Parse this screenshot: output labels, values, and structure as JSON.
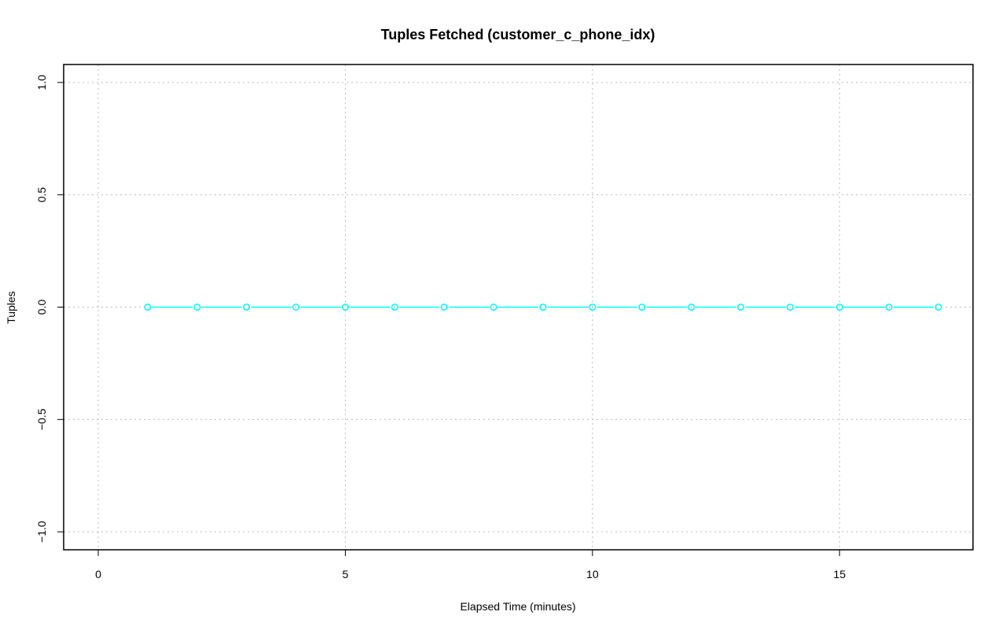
{
  "chart_data": {
    "type": "line",
    "title": "Tuples Fetched (customer_c_phone_idx)",
    "xlabel": "Elapsed Time (minutes)",
    "ylabel": "Tuples",
    "xlim": [
      -0.7,
      17.7
    ],
    "ylim": [
      -1.08,
      1.08
    ],
    "xticks": [
      0,
      5,
      10,
      15
    ],
    "xtick_labels": [
      "0",
      "5",
      "10",
      "15"
    ],
    "yticks": [
      -1.0,
      -0.5,
      0.0,
      0.5,
      1.0
    ],
    "ytick_labels": [
      "−1.0",
      "−0.5",
      "0.0",
      "0.5",
      "1.0"
    ],
    "grid": true,
    "series": [
      {
        "color": "#00ffff",
        "marker": "open-circle",
        "x": [
          1,
          2,
          3,
          4,
          5,
          6,
          7,
          8,
          9,
          10,
          11,
          12,
          13,
          14,
          15,
          16,
          17
        ],
        "y": [
          0,
          0,
          0,
          0,
          0,
          0,
          0,
          0,
          0,
          0,
          0,
          0,
          0,
          0,
          0,
          0,
          0
        ]
      }
    ]
  }
}
